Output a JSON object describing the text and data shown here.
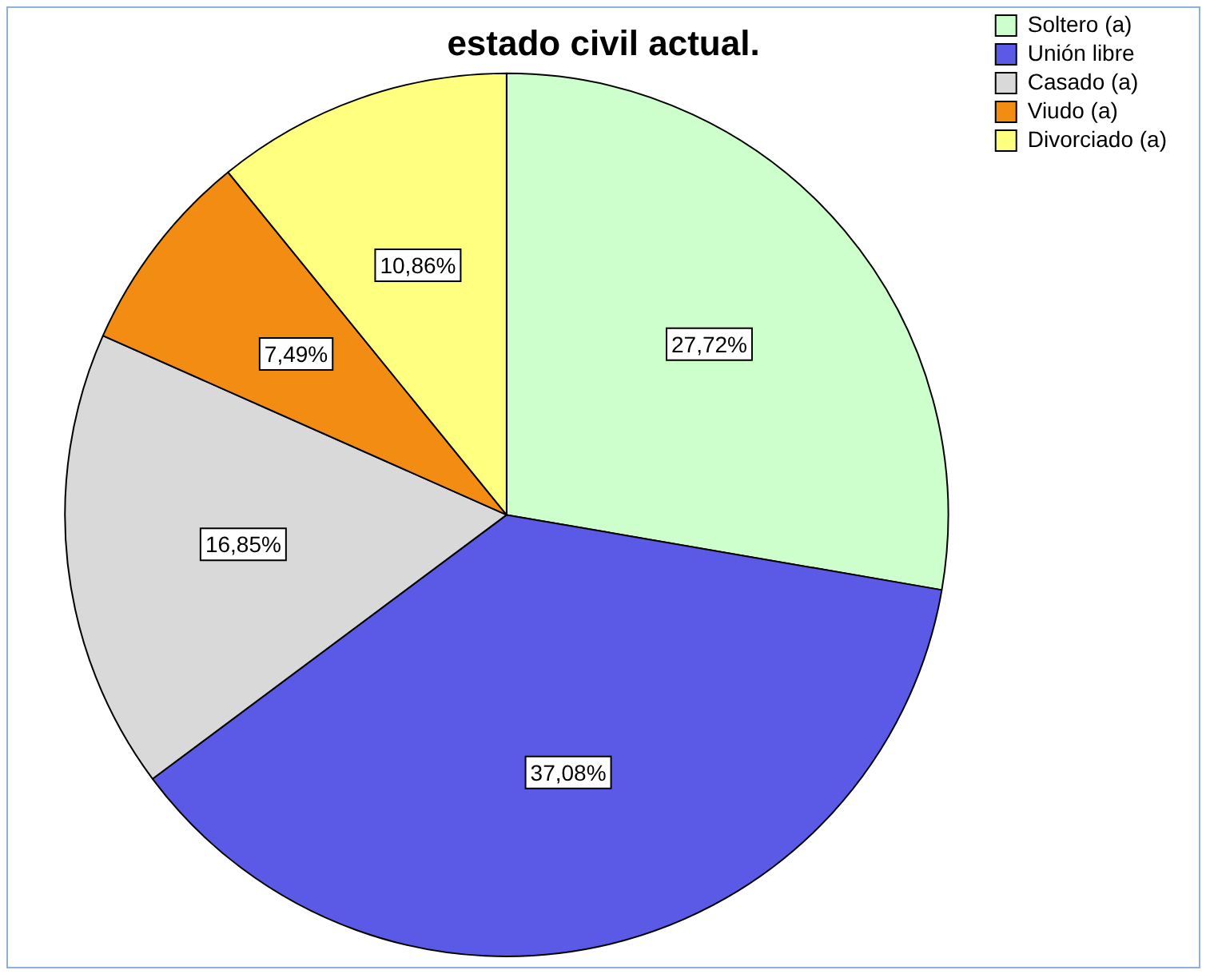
{
  "chart_data": {
    "type": "pie",
    "title": "estado civil actual.",
    "categories": [
      "Soltero (a)",
      "Unión libre",
      "Casado (a)",
      "Viudo (a)",
      "Divorciado (a)"
    ],
    "values": [
      27.72,
      37.08,
      16.85,
      7.49,
      10.86
    ],
    "value_labels": [
      "27,72%",
      "37,08%",
      "16,85%",
      "7,49%",
      "10,86%"
    ],
    "colors": [
      "#ccffcc",
      "#5a5ae6",
      "#d9d9d9",
      "#f28c12",
      "#ffff80"
    ],
    "legend": "top right"
  }
}
